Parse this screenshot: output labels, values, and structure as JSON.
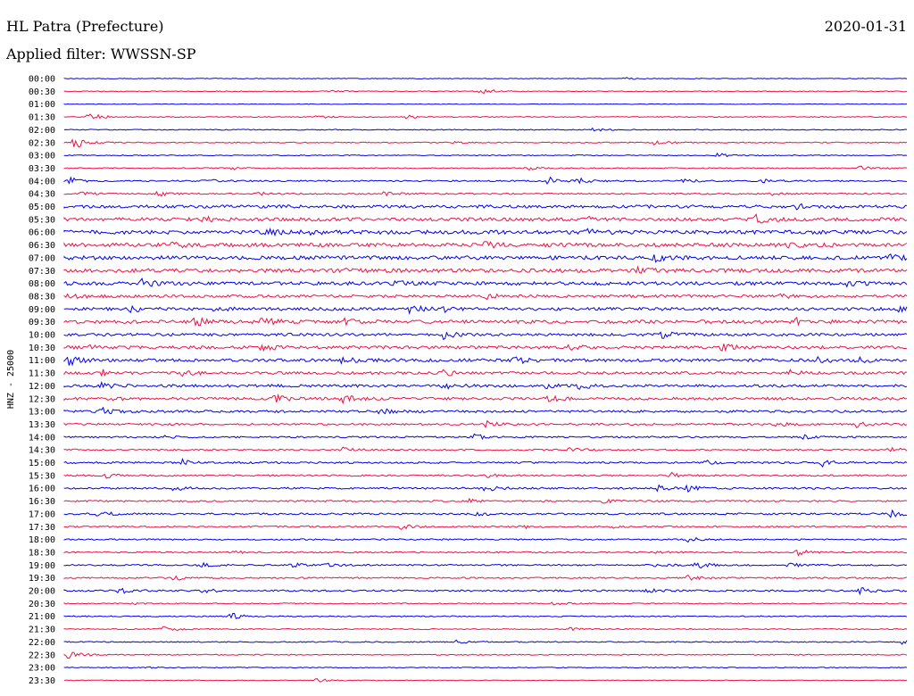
{
  "header": {
    "station": "HL Patra (Prefecture)",
    "date": "2020-01-31",
    "filter": "Applied filter: WWSSN-SP"
  },
  "colors": {
    "odd_trace": "#0000ee",
    "even_trace": "#ee1144"
  },
  "chart_data": {
    "type": "line",
    "ylabel": "HNZ - 25000",
    "traces": [
      {
        "time": "00:00",
        "noise": 0.4,
        "events": [
          [
            0.665,
            1.6
          ]
        ]
      },
      {
        "time": "00:30",
        "noise": 0.5,
        "events": [
          [
            0.32,
            1.6
          ],
          [
            0.495,
            3.5
          ]
        ]
      },
      {
        "time": "01:00",
        "noise": 0.3,
        "events": []
      },
      {
        "time": "01:30",
        "noise": 0.5,
        "events": [
          [
            0.027,
            6.0
          ],
          [
            0.3,
            1.6
          ],
          [
            0.405,
            2.2
          ]
        ]
      },
      {
        "time": "02:00",
        "noise": 0.5,
        "events": [
          [
            0.625,
            2.2
          ]
        ]
      },
      {
        "time": "02:30",
        "noise": 0.6,
        "events": [
          [
            0.012,
            7.0
          ],
          [
            0.46,
            1.6
          ],
          [
            0.7,
            3.0
          ]
        ]
      },
      {
        "time": "03:00",
        "noise": 0.5,
        "events": [
          [
            0.775,
            2.6
          ]
        ]
      },
      {
        "time": "03:30",
        "noise": 0.6,
        "events": [
          [
            0.2,
            1.6
          ],
          [
            0.55,
            2.0
          ],
          [
            0.945,
            2.4
          ]
        ]
      },
      {
        "time": "04:00",
        "noise": 0.8,
        "events": [
          [
            0.005,
            4.0
          ],
          [
            0.165,
            3.0
          ],
          [
            0.575,
            4.5
          ],
          [
            0.61,
            3.5
          ],
          [
            0.735,
            2.5
          ],
          [
            0.83,
            2.0
          ]
        ]
      },
      {
        "time": "04:30",
        "noise": 0.8,
        "events": [
          [
            0.02,
            2.0
          ],
          [
            0.11,
            3.0
          ],
          [
            0.225,
            2.5
          ],
          [
            0.38,
            2.5
          ],
          [
            0.835,
            2.0
          ]
        ]
      },
      {
        "time": "05:00",
        "noise": 1.7,
        "events": [
          [
            0.87,
            2.5
          ]
        ]
      },
      {
        "time": "05:30",
        "noise": 1.9,
        "events": [
          [
            0.165,
            2.5
          ],
          [
            0.62,
            3.0
          ],
          [
            0.82,
            4.5
          ]
        ]
      },
      {
        "time": "06:00",
        "noise": 2.1,
        "events": [
          [
            0.24,
            5.0
          ],
          [
            0.29,
            3.5
          ],
          [
            0.62,
            3.0
          ]
        ]
      },
      {
        "time": "06:30",
        "noise": 2.1,
        "events": [
          [
            0.13,
            3.0
          ],
          [
            0.5,
            3.0
          ],
          [
            0.86,
            3.0
          ]
        ]
      },
      {
        "time": "07:00",
        "noise": 2.1,
        "events": [
          [
            0.7,
            3.5
          ],
          [
            0.98,
            3.0
          ]
        ]
      },
      {
        "time": "07:30",
        "noise": 2.1,
        "events": [
          [
            0.32,
            3.0
          ],
          [
            0.68,
            2.5
          ]
        ]
      },
      {
        "time": "08:00",
        "noise": 1.9,
        "events": [
          [
            0.09,
            5.0
          ],
          [
            0.39,
            3.0
          ],
          [
            0.93,
            3.0
          ]
        ]
      },
      {
        "time": "08:30",
        "noise": 1.5,
        "events": [
          [
            0.005,
            3.5
          ],
          [
            0.5,
            3.0
          ],
          [
            0.85,
            2.5
          ]
        ]
      },
      {
        "time": "09:00",
        "noise": 1.7,
        "events": [
          [
            0.08,
            3.5
          ],
          [
            0.18,
            3.0
          ],
          [
            0.41,
            5.0
          ],
          [
            0.445,
            3.5
          ],
          [
            0.99,
            3.5
          ]
        ]
      },
      {
        "time": "09:30",
        "noise": 1.9,
        "events": [
          [
            0.155,
            4.5
          ],
          [
            0.235,
            5.0
          ],
          [
            0.33,
            3.5
          ],
          [
            0.87,
            4.0
          ]
        ]
      },
      {
        "time": "10:00",
        "noise": 1.5,
        "events": [
          [
            0.45,
            4.5
          ],
          [
            0.71,
            4.5
          ]
        ]
      },
      {
        "time": "10:30",
        "noise": 1.7,
        "events": [
          [
            0.025,
            3.0
          ],
          [
            0.235,
            3.0
          ],
          [
            0.6,
            3.0
          ],
          [
            0.78,
            4.0
          ]
        ]
      },
      {
        "time": "11:00",
        "noise": 1.7,
        "events": [
          [
            0.005,
            5.5
          ],
          [
            0.33,
            3.5
          ],
          [
            0.535,
            4.0
          ],
          [
            0.89,
            3.5
          ],
          [
            0.94,
            3.0
          ]
        ]
      },
      {
        "time": "11:30",
        "noise": 1.5,
        "events": [
          [
            0.045,
            3.0
          ],
          [
            0.14,
            2.5
          ],
          [
            0.45,
            3.0
          ],
          [
            0.86,
            3.0
          ]
        ]
      },
      {
        "time": "12:00",
        "noise": 1.5,
        "events": [
          [
            0.045,
            3.0
          ],
          [
            0.45,
            3.0
          ],
          [
            0.57,
            4.0
          ],
          [
            0.61,
            3.5
          ]
        ]
      },
      {
        "time": "12:30",
        "noise": 1.5,
        "events": [
          [
            0.05,
            3.0
          ],
          [
            0.25,
            3.5
          ],
          [
            0.33,
            4.0
          ],
          [
            0.575,
            3.5
          ]
        ]
      },
      {
        "time": "13:00",
        "noise": 1.3,
        "events": [
          [
            0.045,
            3.5
          ],
          [
            0.375,
            3.0
          ]
        ]
      },
      {
        "time": "13:30",
        "noise": 1.1,
        "events": [
          [
            0.5,
            3.5
          ],
          [
            0.845,
            2.5
          ],
          [
            0.94,
            3.0
          ]
        ]
      },
      {
        "time": "14:00",
        "noise": 0.9,
        "events": [
          [
            0.11,
            2.5
          ],
          [
            0.485,
            3.5
          ],
          [
            0.875,
            2.5
          ]
        ]
      },
      {
        "time": "14:30",
        "noise": 0.9,
        "events": [
          [
            0.33,
            2.5
          ],
          [
            0.6,
            2.5
          ],
          [
            0.98,
            3.5
          ]
        ]
      },
      {
        "time": "15:00",
        "noise": 1.0,
        "events": [
          [
            0.14,
            3.5
          ],
          [
            0.76,
            2.5
          ],
          [
            0.9,
            3.5
          ]
        ]
      },
      {
        "time": "15:30",
        "noise": 0.9,
        "events": [
          [
            0.05,
            2.5
          ],
          [
            0.5,
            2.5
          ],
          [
            0.72,
            3.0
          ]
        ]
      },
      {
        "time": "16:00",
        "noise": 1.0,
        "events": [
          [
            0.13,
            2.5
          ],
          [
            0.5,
            3.5
          ],
          [
            0.705,
            3.5
          ],
          [
            0.74,
            3.0
          ]
        ]
      },
      {
        "time": "16:30",
        "noise": 0.9,
        "events": [
          [
            0.48,
            2.5
          ],
          [
            0.64,
            2.5
          ]
        ]
      },
      {
        "time": "17:00",
        "noise": 1.0,
        "events": [
          [
            0.04,
            3.0
          ],
          [
            0.485,
            3.0
          ],
          [
            0.98,
            4.0
          ]
        ]
      },
      {
        "time": "17:30",
        "noise": 0.9,
        "events": [
          [
            0.4,
            2.5
          ],
          [
            0.54,
            2.5
          ],
          [
            0.65,
            2.0
          ]
        ]
      },
      {
        "time": "18:00",
        "noise": 0.8,
        "events": [
          [
            0.74,
            3.0
          ]
        ]
      },
      {
        "time": "18:30",
        "noise": 0.8,
        "events": [
          [
            0.2,
            2.0
          ],
          [
            0.7,
            2.0
          ],
          [
            0.87,
            3.5
          ]
        ]
      },
      {
        "time": "19:00",
        "noise": 0.8,
        "events": [
          [
            0.16,
            2.5
          ],
          [
            0.27,
            2.5
          ],
          [
            0.31,
            2.5
          ],
          [
            0.7,
            2.5
          ],
          [
            0.75,
            4.0
          ],
          [
            0.86,
            2.5
          ]
        ]
      },
      {
        "time": "19:30",
        "noise": 0.8,
        "events": [
          [
            0.13,
            3.0
          ],
          [
            0.74,
            3.0
          ]
        ]
      },
      {
        "time": "20:00",
        "noise": 0.9,
        "events": [
          [
            0.065,
            3.5
          ],
          [
            0.165,
            2.5
          ],
          [
            0.69,
            2.5
          ],
          [
            0.945,
            3.5
          ]
        ]
      },
      {
        "time": "20:30",
        "noise": 0.6,
        "events": [
          [
            0.075,
            1.6
          ],
          [
            0.58,
            1.6
          ]
        ]
      },
      {
        "time": "21:00",
        "noise": 0.6,
        "events": [
          [
            0.195,
            5.0
          ]
        ]
      },
      {
        "time": "21:30",
        "noise": 0.6,
        "events": [
          [
            0.115,
            3.5
          ],
          [
            0.6,
            2.0
          ]
        ]
      },
      {
        "time": "22:00",
        "noise": 0.6,
        "events": [
          [
            0.465,
            2.5
          ],
          [
            0.995,
            3.0
          ]
        ]
      },
      {
        "time": "22:30",
        "noise": 0.6,
        "events": [
          [
            0.005,
            5.0
          ]
        ]
      },
      {
        "time": "23:00",
        "noise": 0.5,
        "events": [
          [
            0.1,
            1.6
          ]
        ]
      },
      {
        "time": "23:30",
        "noise": 0.4,
        "events": [
          [
            0.3,
            2.5
          ]
        ]
      }
    ]
  }
}
